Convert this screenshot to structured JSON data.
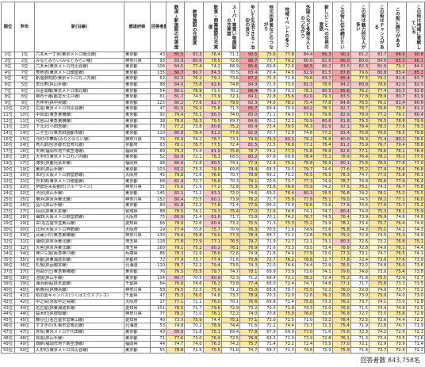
{
  "table": {
    "headers": [
      "順位",
      "昨年",
      "駅(沿線)",
      "都道府県",
      "回答者数",
      "鉄道・駅施設の充実度",
      "教育施設の充実度",
      "飲食・商業施設の充実度",
      "スーパー等買い物施設の充実度",
      "歩いて生活できる・治安の良さ",
      "地元出身者などのつながり",
      "地域イベントの多さ",
      "外国人など多様な人とのつながり",
      "新しいことへの住民の意欲",
      "この街に住み続けたい",
      "この街は魅力的な人が多い",
      "この街はチャンスがある",
      "この街に誇りがある",
      "この街は地域に貢献している"
    ],
    "rows": [
      [
        "1位",
        "1位",
        "六本木一丁目(東京メトロ南北線)",
        "東京都",
        "43",
        "85.5",
        "83.3",
        "76.4",
        "71.1",
        "90.5",
        "75.6",
        "77.8",
        "84.4",
        "86.3",
        "90.1",
        "81.2",
        "83.7",
        "88.9",
        "90.8"
      ],
      [
        "2位",
        "2位",
        "みなとみらい(みなとみらい線)",
        "神奈川県",
        "93",
        "83.9",
        "80.6",
        "78.5",
        "72.6",
        "88.7",
        "73.7",
        "79.2",
        "80.6",
        "82.8",
        "86.0",
        "80.6",
        "84.9",
        "85.3",
        "86.1"
      ],
      [
        "3位",
        "3位",
        "六本木(東京メトロ日比谷線)",
        "東京都",
        "106",
        "84.5",
        "77.4",
        "74.2",
        "68.9",
        "85.6",
        "69.8",
        "72.6",
        "86.5",
        "80.2",
        "83.0",
        "82.3",
        "81.0",
        "79.2",
        "84.0"
      ],
      [
        "4位",
        "7位",
        "表参道(東京メトロ銀座線)",
        "東京都",
        "135",
        "86.7",
        "80.7",
        "84.3",
        "70.5",
        "83.4",
        "70.4",
        "74.5",
        "82.9",
        "81.5",
        "87.8",
        "79.6",
        "80.8",
        "83.4",
        "85.2"
      ],
      [
        "5位",
        "4位",
        "新宿御苑前(東京メトロ丸ノ内線)",
        "東京都",
        "62",
        "82.3",
        "76.2",
        "79.1",
        "73.6",
        "87.2",
        "72.3",
        "71.8",
        "79.6",
        "83.7",
        "85.4",
        "77.5",
        "79.2",
        "81.6",
        "83.7"
      ],
      [
        "6位",
        "5位",
        "恵比寿(JR山手線)",
        "東京都",
        "88",
        "84.0",
        "75.8",
        "82.6",
        "74.8",
        "84.9",
        "71.5",
        "73.0",
        "81.3",
        "78.6",
        "84.2",
        "80.9",
        "78.6",
        "82.0",
        "82.5"
      ],
      [
        "7位",
        "6位",
        "白金高輪(東京メトロ南北線)",
        "東京都",
        "54",
        "80.1",
        "78.9",
        "73.5",
        "70.2",
        "86.4",
        "70.9",
        "70.3",
        "78.1",
        "80.5",
        "85.6",
        "78.2",
        "77.4",
        "80.3",
        "82.8"
      ],
      [
        "8位",
        "8位",
        "麻布十番(都営大江戸線)",
        "東京都",
        "61",
        "81.7",
        "74.5",
        "77.9",
        "72.1",
        "84.1",
        "72.8",
        "75.6",
        "82.0",
        "79.3",
        "83.5",
        "77.8",
        "78.9",
        "80.7",
        "81.9"
      ],
      [
        "9位",
        "9位",
        "吉祥寺(JR中央線)",
        "東京都",
        "125",
        "80.2",
        "77.6",
        "82.7",
        "79.5",
        "82.3",
        "74.6",
        "78.2",
        "75.4",
        "77.8",
        "84.8",
        "76.5",
        "76.1",
        "81.4",
        "80.6"
      ],
      [
        "10位",
        "12位",
        "広尾(東京メトロ日比谷線)",
        "東京都",
        "47",
        "81.5",
        "79.2",
        "75.8",
        "71.3",
        "85.7",
        "69.4",
        "70.9",
        "84.2",
        "78.1",
        "82.7",
        "78.7",
        "76.8",
        "79.5",
        "81.2"
      ],
      [
        "11位",
        "10位",
        "中目黒(東急東横線)",
        "東京都",
        "92",
        "79.4",
        "75.1",
        "80.3",
        "74.0",
        "83.0",
        "71.1",
        "74.3",
        "77.6",
        "79.8",
        "82.9",
        "78.0",
        "77.2",
        "79.1",
        "80.4"
      ],
      [
        "12位",
        "11位",
        "代官山(東急東横線)",
        "東京都",
        "38",
        "78.6",
        "76.3",
        "79.5",
        "69.7",
        "84.6",
        "70.2",
        "72.1",
        "78.9",
        "80.6",
        "81.8",
        "79.3",
        "76.5",
        "78.8",
        "79.9"
      ],
      [
        "13位",
        "13位",
        "下北沢(小田急線)",
        "東京都",
        "73",
        "77.2",
        "73.8",
        "80.8",
        "75.2",
        "80.4",
        "73.4",
        "79.5",
        "76.3",
        "81.9",
        "82.1",
        "78.4",
        "78.3",
        "77.6",
        "79.3"
      ],
      [
        "14位",
        "14位",
        "二子玉川(東急田園都市線)",
        "東京都",
        "110",
        "80.8",
        "78.4",
        "81.2",
        "77.6",
        "82.8",
        "70.7",
        "72.9",
        "74.8",
        "77.2",
        "83.4",
        "75.8",
        "76.0",
        "78.5",
        "79.8"
      ],
      [
        "15位",
        "15位",
        "元町・中華街(みなとみらい線)",
        "神奈川県",
        "74",
        "76.9",
        "74.2",
        "78.7",
        "73.1",
        "79.6",
        "75.3",
        "80.1",
        "79.2",
        "76.8",
        "80.6",
        "76.3",
        "75.4",
        "80.2",
        "78.6"
      ],
      [
        "16位",
        "24位",
        "烏丸御池(京都市営烏丸線)",
        "京都府",
        "63",
        "78.1",
        "76.7",
        "77.5",
        "72.4",
        "81.5",
        "72.5",
        "76.8",
        "77.1",
        "76.4",
        "81.2",
        "75.9",
        "76.7",
        "79.4",
        "78.8"
      ],
      [
        "17位",
        "16位",
        "天神(福岡市地下鉄空港線)",
        "福岡県",
        "89",
        "79.3",
        "73.4",
        "81.9",
        "75.8",
        "78.7",
        "74.2",
        "77.3",
        "75.6",
        "78.8",
        "82.6",
        "77.1",
        "79.8",
        "78.1",
        "78.4"
      ],
      [
        "18位",
        "18位",
        "大手町(東京メトロ丸ノ内線)",
        "東京都",
        "52",
        "82.9",
        "72.1",
        "78.3",
        "68.5",
        "80.2",
        "67.6",
        "69.8",
        "78.4",
        "75.2",
        "78.9",
        "76.4",
        "78.2",
        "76.3",
        "77.5"
      ],
      [
        "19位",
        "17位",
        "博多(JR鹿児島本線)",
        "福岡県",
        "98",
        "80.6",
        "72.8",
        "80.5",
        "74.1",
        "77.9",
        "72.9",
        "75.1",
        "76.8",
        "76.9",
        "80.1",
        "75.6",
        "78.5",
        "77.8",
        "77.0"
      ],
      [
        "20位",
        "19位",
        "東京(JR山手線)",
        "東京都",
        "103",
        "83.2",
        "73.3",
        "79.9",
        "69.8",
        "79.4",
        "68.3",
        "70.5",
        "79.7",
        "74.6",
        "77.6",
        "75.2",
        "77.9",
        "78.6",
        "76.8"
      ],
      [
        "21位",
        "20位",
        "本町(大阪メトロ御堂筋線)",
        "大阪府",
        "45",
        "79.8",
        "71.6",
        "76.6",
        "70.7",
        "78.8",
        "69.1",
        "70.2",
        "76.5",
        "75.5",
        "78.3",
        "74.7",
        "77.3",
        "75.8",
        "76.1"
      ],
      [
        "22位",
        "21位",
        "日本橋(東京メトロ銀座線)",
        "東京都",
        "68",
        "81.4",
        "72.7",
        "78.8",
        "70.3",
        "79.1",
        "70.6",
        "73.7",
        "77.3",
        "74.9",
        "78.7",
        "74.8",
        "76.6",
        "77.9",
        "76.4"
      ],
      [
        "23位",
        "23位",
        "伊勢佐木長者町(ブルーライン)",
        "神奈川県",
        "31",
        "75.6",
        "71.9",
        "77.2",
        "72.8",
        "75.3",
        "73.8",
        "78.6",
        "75.9",
        "74.2",
        "77.5",
        "75.1",
        "74.3",
        "76.7",
        "75.8"
      ],
      [
        "24位",
        "22位",
        "渋谷(JR山手線)",
        "東京都",
        "145",
        "82.1",
        "71.2",
        "83.1",
        "72.0",
        "74.6",
        "69.5",
        "76.4",
        "80.3",
        "76.5",
        "76.8",
        "74.2",
        "78.1",
        "75.2",
        "75.5"
      ],
      [
        "25位",
        "25位",
        "横浜(JR京浜東北線)",
        "神奈川県",
        "152",
        "80.4",
        "73.5",
        "80.1",
        "73.9",
        "76.2",
        "71.7",
        "75.9",
        "77.8",
        "75.1",
        "79.0",
        "74.5",
        "76.2",
        "77.1",
        "76.0"
      ],
      [
        "26位",
        "26位",
        "品川(JR山手線)",
        "東京都",
        "80",
        "81.8",
        "72.3",
        "77.8",
        "71.4",
        "77.6",
        "69.2",
        "70.8",
        "78.6",
        "73.8",
        "77.9",
        "73.6",
        "77.0",
        "75.7",
        "75.2"
      ],
      [
        "27位",
        "27位",
        "仙台(JR東北本線)",
        "宮城県",
        "88",
        "78.5",
        "74.1",
        "79.3",
        "75.4",
        "77.0",
        "72.6",
        "74.8",
        "74.1",
        "74.7",
        "80.4",
        "74.0",
        "75.3",
        "78.2",
        "75.9"
      ],
      [
        "28位",
        "28位",
        "梅田(大阪メトロ御堂筋線)",
        "大阪府",
        "75",
        "80.9",
        "71.4",
        "81.6",
        "71.7",
        "73.8",
        "70.1",
        "74.2",
        "76.7",
        "74.5",
        "76.4",
        "73.9",
        "76.9",
        "74.6",
        "74.8"
      ],
      [
        "29位",
        "29位",
        "栄(名古屋市営東山線)",
        "愛知県",
        "66",
        "78.9",
        "72.6",
        "80.4",
        "73.2",
        "75.5",
        "71.3",
        "75.3",
        "75.2",
        "73.9",
        "78.1",
        "73.4",
        "75.7",
        "76.4",
        "74.6"
      ],
      [
        "30位",
        "30位",
        "北浜(大阪メトロ堺筋線)",
        "大阪府",
        "29",
        "77.4",
        "70.8",
        "75.7",
        "70.9",
        "76.3",
        "70.5",
        "71.6",
        "74.9",
        "73.6",
        "75.8",
        "74.3",
        "75.1",
        "74.2",
        "74.3"
      ],
      [
        "31位",
        "33位",
        "武蔵小杉(東急東横線)",
        "神奈川県",
        "130",
        "79.6",
        "76.8",
        "79.0",
        "77.3",
        "78.4",
        "68.7",
        "71.2",
        "72.8",
        "75.8",
        "79.2",
        "72.9",
        "74.5",
        "75.3",
        "74.9"
      ],
      [
        "32位",
        "31位",
        "浦和(JR京浜東北線)",
        "埼玉県",
        "118",
        "77.8",
        "77.9",
        "77.1",
        "76.5",
        "79.7",
        "71.9",
        "72.7",
        "72.1",
        "73.1",
        "80.3",
        "72.6",
        "73.2",
        "76.8",
        "75.1"
      ],
      [
        "33位",
        "32位",
        "大宮(JR京浜東北線)",
        "埼玉県",
        "160",
        "79.1",
        "75.2",
        "80.2",
        "76.1",
        "76.9",
        "71.6",
        "73.3",
        "73.5",
        "73.4",
        "78.8",
        "72.8",
        "74.0",
        "76.1",
        "74.4"
      ],
      [
        "34位",
        "34位",
        "神戸三宮(阪急神戸線)",
        "兵庫県",
        "86",
        "78.3",
        "72.9",
        "78.6",
        "72.6",
        "74.9",
        "71.8",
        "74.0",
        "77.9",
        "73.0",
        "77.3",
        "73.1",
        "74.7",
        "76.5",
        "74.1"
      ],
      [
        "35位",
        "35位",
        "京都(JR東海道本線)",
        "京都府",
        "72",
        "77.9",
        "73.7",
        "77.4",
        "71.6",
        "75.8",
        "72.7",
        "76.2",
        "78.8",
        "72.7",
        "77.8",
        "72.4",
        "73.8",
        "77.6",
        "73.9"
      ],
      [
        "36位",
        "36位",
        "札幌(JR函館本線)",
        "北海道",
        "110",
        "78.7",
        "72.2",
        "79.4",
        "73.5",
        "74.3",
        "71.0",
        "74.6",
        "74.4",
        "72.9",
        "78.5",
        "72.2",
        "74.8",
        "76.0",
        "73.6"
      ],
      [
        "37位",
        "37位",
        "自由が丘(東急東横線)",
        "東京都",
        "76",
        "76.5",
        "75.5",
        "79.7",
        "74.7",
        "78.1",
        "69.9",
        "73.9",
        "73.0",
        "74.1",
        "79.6",
        "74.6",
        "73.0",
        "75.4",
        "73.8"
      ],
      [
        "38位",
        "38位",
        "池袋(JR山手線)",
        "東京都",
        "134",
        "80.7",
        "70.5",
        "80.9",
        "72.3",
        "71.2",
        "68.4",
        "73.1",
        "78.2",
        "72.4",
        "75.2",
        "71.8",
        "75.5",
        "72.9",
        "72.7"
      ],
      [
        "39位",
        "39位",
        "海浜幕張(JR京葉線)",
        "千葉県",
        "64",
        "76.8",
        "74.6",
        "76.2",
        "73.8",
        "77.4",
        "68.0",
        "72.4",
        "74.7",
        "74.8",
        "77.1",
        "71.7",
        "75.8",
        "73.3",
        "73.5"
      ],
      [
        "40位",
        "40位",
        "新横浜(JR横浜線)",
        "神奈川県",
        "58",
        "79.5",
        "72.5",
        "75.9",
        "71.2",
        "75.0",
        "68.8",
        "70.7",
        "75.5",
        "72.2",
        "76.0",
        "72.0",
        "74.9",
        "73.7",
        "73.2"
      ],
      [
        "41位",
        "41位",
        "柏の葉キャンパス(つくばエクスプレス)",
        "千葉県",
        "47",
        "75.3",
        "76.0",
        "74.8",
        "73.7",
        "78.9",
        "70.3",
        "72.0",
        "72.6",
        "76.2",
        "78.0",
        "73.0",
        "75.0",
        "74.0",
        "73.0"
      ],
      [
        "42位",
        "42位",
        "中之島(京阪中之島線)",
        "大阪府",
        "27",
        "77.1",
        "71.1",
        "76.0",
        "70.1",
        "76.6",
        "69.6",
        "71.4",
        "75.0",
        "73.3",
        "76.2",
        "73.7",
        "74.1",
        "73.0",
        "72.8"
      ],
      [
        "43位",
        "43位",
        "名古屋(JR東海道本線)",
        "愛知県",
        "101",
        "78.0",
        "71.7",
        "79.6",
        "72.9",
        "73.2",
        "70.0",
        "72.8",
        "74.3",
        "72.0",
        "76.6",
        "71.5",
        "74.4",
        "74.8",
        "72.5"
      ],
      [
        "44位",
        "44位",
        "桜木町(JR根岸線)",
        "神奈川県",
        "77",
        "78.2",
        "71.0",
        "78.1",
        "72.2",
        "74.0",
        "70.8",
        "75.0",
        "76.0",
        "72.6",
        "76.9",
        "72.7",
        "73.5",
        "75.6",
        "72.9"
      ],
      [
        "45位",
        "45位",
        "藤が丘(名古屋市営東山線)",
        "愛知県",
        "40",
        "73.9",
        "75.9",
        "74.4",
        "75.1",
        "77.1",
        "72.0",
        "72.5",
        "71.0",
        "73.2",
        "78.4",
        "72.5",
        "72.6",
        "74.4",
        "72.2"
      ],
      [
        "46位",
        "46位",
        "すすきの(札幌市営南北線)",
        "北海道",
        "53",
        "74.8",
        "70.2",
        "78.9",
        "74.4",
        "71.6",
        "71.2",
        "74.4",
        "73.7",
        "72.3",
        "75.4",
        "71.9",
        "72.8",
        "74.7",
        "71.9"
      ],
      [
        "47位",
        "47位",
        "赤坂(東京メトロ千代田線)",
        "東京都",
        "49",
        "80.0",
        "71.8",
        "75.1",
        "69.4",
        "77.8",
        "67.9",
        "69.9",
        "77.0",
        "71.6",
        "75.6",
        "72.3",
        "74.2",
        "72.6",
        "72.1"
      ],
      [
        "48位",
        "48位",
        "目黒(JR山手線)",
        "東京都",
        "71",
        "77.6",
        "73.0",
        "76.9",
        "72.5",
        "76.8",
        "69.3",
        "71.0",
        "73.9",
        "72.8",
        "76.1",
        "71.3",
        "73.4",
        "73.5",
        "71.6"
      ],
      [
        "49位",
        "49位",
        "西新(福岡市地下鉄空港線)",
        "福岡県",
        "44",
        "74.7",
        "74.0",
        "76.3",
        "74.2",
        "75.7",
        "71.4",
        "72.2",
        "72.4",
        "73.5",
        "77.0",
        "72.1",
        "72.9",
        "73.9",
        "71.4"
      ],
      [
        "50位",
        "50位",
        "人形町(東京メトロ日比谷線)",
        "東京都",
        "55",
        "78.8",
        "71.5",
        "75.5",
        "71.0",
        "74.7",
        "69.7",
        "71.3",
        "74.6",
        "71.9",
        "75.9",
        "71.4",
        "73.7",
        "72.4",
        "71.2"
      ]
    ]
  },
  "footer": "回答者数 843,758名"
}
